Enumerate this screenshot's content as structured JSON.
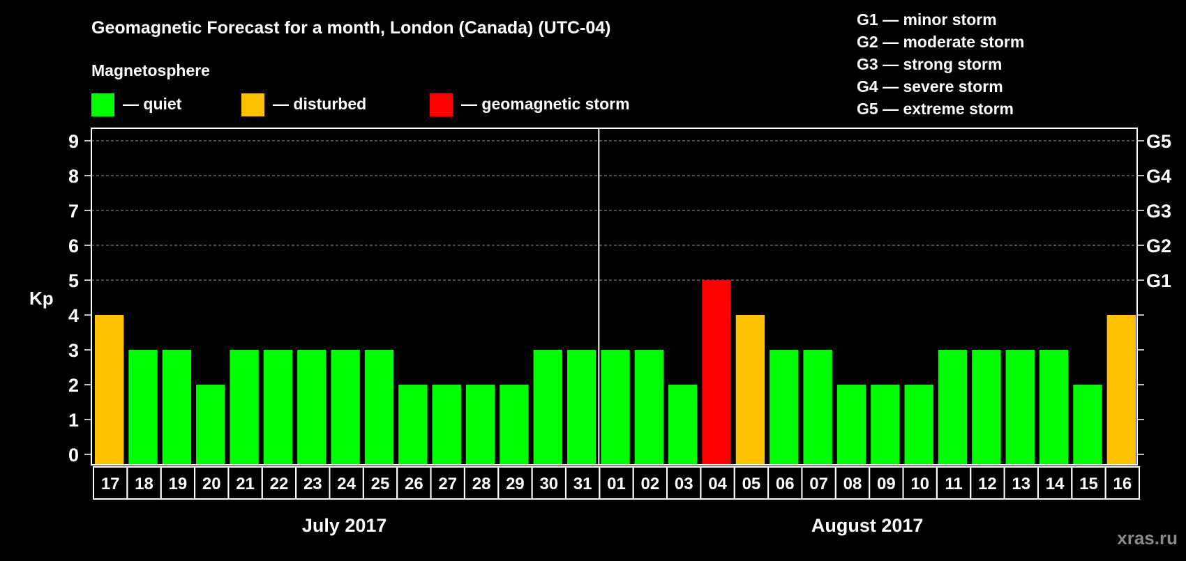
{
  "chart_data": {
    "type": "bar",
    "title": "Geomagnetic Forecast for a month, London (Canada) (UTC-04)",
    "subtitle": "Magnetosphere",
    "ylabel": "Kp",
    "ylim": [
      0,
      9
    ],
    "yticks": [
      "0",
      "1",
      "2",
      "3",
      "4",
      "5",
      "6",
      "7",
      "8",
      "9"
    ],
    "grid": "dashed horizontal at 5-9",
    "legend": [
      {
        "label": "— quiet",
        "color": "#00ff00"
      },
      {
        "label": "— disturbed",
        "color": "#ffc000"
      },
      {
        "label": "— geomagnetic storm",
        "color": "#ff0000"
      }
    ],
    "storm_scale": [
      "G1 — minor storm",
      "G2 — moderate storm",
      "G3 — strong storm",
      "G4 — severe storm",
      "G5 — extreme storm"
    ],
    "right_ticks": [
      {
        "kp": 5,
        "label": "G1"
      },
      {
        "kp": 6,
        "label": "G2"
      },
      {
        "kp": 7,
        "label": "G3"
      },
      {
        "kp": 8,
        "label": "G4"
      },
      {
        "kp": 9,
        "label": "G5"
      }
    ],
    "categories": [
      "17",
      "18",
      "19",
      "20",
      "21",
      "22",
      "23",
      "24",
      "25",
      "26",
      "27",
      "28",
      "29",
      "30",
      "31",
      "01",
      "02",
      "03",
      "04",
      "05",
      "06",
      "07",
      "08",
      "09",
      "10",
      "11",
      "12",
      "13",
      "14",
      "15",
      "16"
    ],
    "values": [
      4,
      3,
      3,
      2,
      3,
      3,
      3,
      3,
      3,
      2,
      2,
      2,
      2,
      3,
      3,
      3,
      3,
      2,
      5,
      4,
      3,
      3,
      2,
      2,
      2,
      3,
      3,
      3,
      3,
      2,
      4
    ],
    "months": [
      {
        "label": "July 2017",
        "days": 15
      },
      {
        "label": "August 2017",
        "days": 16
      }
    ]
  },
  "watermark": "xras.ru"
}
